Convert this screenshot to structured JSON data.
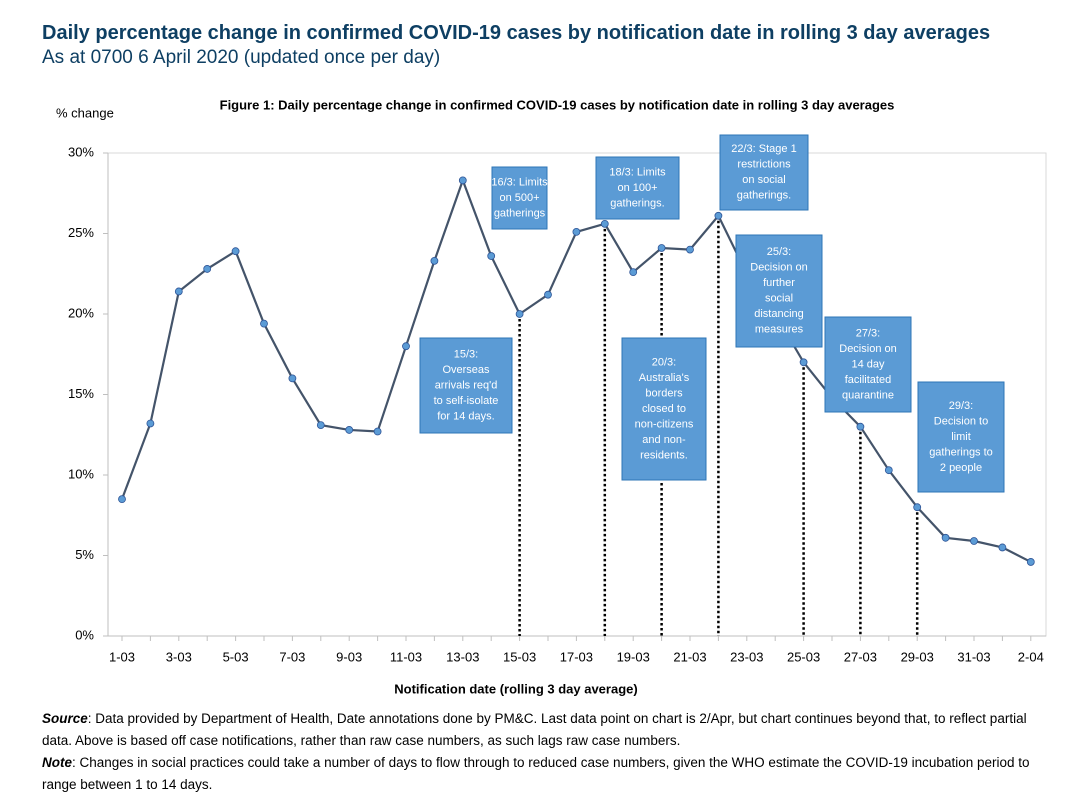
{
  "header": {
    "title": "Daily percentage change in confirmed COVID-19 cases by notification date in rolling 3 day averages",
    "subtitle": "As at 0700 6 April 2020 (updated once per day)"
  },
  "chart_data": {
    "type": "line",
    "title": "Figure 1: Daily percentage change in confirmed COVID-19 cases by notification date in rolling 3 day averages",
    "y_label": "% change",
    "x_label": "Notification date (rolling 3 day average)",
    "categories": [
      "1-03",
      null,
      "3-03",
      null,
      "5-03",
      null,
      "7-03",
      null,
      "9-03",
      null,
      "11-03",
      null,
      "13-03",
      null,
      "15-03",
      null,
      "17-03",
      null,
      "19-03",
      null,
      "21-03",
      null,
      "23-03",
      null,
      "25-03",
      null,
      "27-03",
      null,
      "29-03",
      null,
      "31-03",
      null,
      "2-04"
    ],
    "series": [
      {
        "name": "Daily percentage change",
        "color": "#44546a",
        "marker_color": "#5b9bd5",
        "values": [
          8.5,
          13.2,
          21.4,
          22.8,
          23.9,
          19.4,
          16.0,
          13.1,
          12.8,
          12.7,
          18.0,
          23.3,
          28.3,
          23.6,
          20.0,
          21.2,
          25.1,
          25.6,
          22.6,
          24.1,
          24.0,
          26.1,
          22.5,
          20.0,
          17.0,
          14.8,
          13.0,
          10.3,
          8.0,
          6.1,
          5.9,
          5.5,
          4.6
        ]
      }
    ],
    "ylim": [
      0,
      30
    ],
    "yticks": [
      {
        "value": 0,
        "label": "0%"
      },
      {
        "value": 5,
        "label": "5%"
      },
      {
        "value": 10,
        "label": "10%"
      },
      {
        "value": 15,
        "label": "15%"
      },
      {
        "value": 20,
        "label": "20%"
      },
      {
        "value": 25,
        "label": "25%"
      },
      {
        "value": 30,
        "label": "30%"
      }
    ],
    "grid": false,
    "annotations": [
      {
        "lines": [
          "15/3:",
          "Overseas",
          "arrivals req'd",
          "to self-isolate",
          "for 14 days."
        ]
      },
      {
        "lines": [
          "16/3: Limits",
          "on 500+",
          "gatherings"
        ]
      },
      {
        "lines": [
          "18/3: Limits",
          "on 100+",
          "gatherings."
        ]
      },
      {
        "lines": [
          "20/3:",
          "Australia's",
          "borders",
          "closed to",
          "non-citizens",
          "and non-",
          "residents."
        ]
      },
      {
        "lines": [
          "22/3: Stage 1",
          "restrictions",
          "on social",
          "gatherings."
        ]
      },
      {
        "lines": [
          "25/3:",
          "Decision on",
          "further",
          "social",
          "distancing",
          "measures"
        ]
      },
      {
        "lines": [
          "27/3:",
          "Decision on",
          "14 day",
          "facilitated",
          "quarantine"
        ]
      },
      {
        "lines": [
          "29/3:",
          "Decision to",
          "limit",
          "gatherings to",
          "2 people"
        ]
      }
    ]
  },
  "notes": [
    {
      "label": "Source",
      "text": ": Data provided by Department of Health, Date annotations done by PM&C. Last data point on chart is 2/Apr, but chart continues beyond that, to reflect partial data. Above is based off case notifications, rather than raw case numbers, as such lags raw case numbers."
    },
    {
      "label": "Note",
      "text": ": Changes in social practices could take a number of days to flow through to reduced case numbers, given the WHO estimate the COVID-19 incubation period to range between 1 to 14 days."
    }
  ]
}
